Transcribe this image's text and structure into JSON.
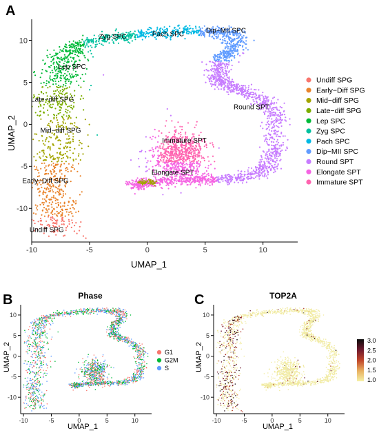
{
  "chart_data": [
    {
      "panel_label": "A",
      "type": "scatter",
      "title": "",
      "xlabel": "UMAP_1",
      "ylabel": "UMAP_2",
      "xlim": [
        -10,
        13
      ],
      "ylim": [
        -14,
        12.5
      ],
      "xticks": [
        -10,
        -5,
        0,
        5,
        10
      ],
      "yticks": [
        -10,
        -5,
        0,
        5,
        10
      ],
      "legend_position": "right",
      "series": [
        {
          "name": "Undiff SPG",
          "color": "#F8766D",
          "cx": -7.6,
          "cy": -12.5,
          "label": "Undiff SPG",
          "label_x": -8.7,
          "label_y": -12.8
        },
        {
          "name": "Early−Diff SPG",
          "color": "#E9842C",
          "cx": -8.2,
          "cy": -7.0,
          "label": "Early−Diff SPG",
          "label_x": -8.8,
          "label_y": -7.0
        },
        {
          "name": "Mid−diff SPG",
          "color": "#A3A500",
          "cx": -7.5,
          "cy": -1.5,
          "label": "Mid−diff SPG",
          "label_x": -7.5,
          "label_y": -1.0
        },
        {
          "name": "Late−diff SPG",
          "color": "#7CAE00",
          "cx": -7.5,
          "cy": 2.8,
          "label": "Late−diff SPG",
          "label_x": -8.2,
          "label_y": 2.7
        },
        {
          "name": "Lep SPC",
          "color": "#00BA38",
          "cx": -7.0,
          "cy": 7.0,
          "label": "Lep SPC",
          "label_x": -6.5,
          "label_y": 6.6
        },
        {
          "name": "Zyg SPC",
          "color": "#00C19F",
          "cx": -4.0,
          "cy": 10.2,
          "label": "Zyg SPC",
          "label_x": -3.0,
          "label_y": 10.2
        },
        {
          "name": "Pach SPC",
          "color": "#00B9E3",
          "cx": 1.5,
          "cy": 10.8,
          "label": "Pach SPC",
          "label_x": 1.8,
          "label_y": 10.5
        },
        {
          "name": "Dip−MII SPC",
          "color": "#619CFF",
          "cx": 6.5,
          "cy": 10.5,
          "label": "Dip−MII SPC",
          "label_x": 6.8,
          "label_y": 10.9
        },
        {
          "name": "Round SPT",
          "color": "#C77CFF",
          "cx": 8.0,
          "cy": 2.0,
          "label": "Round SPT",
          "label_x": 9.0,
          "label_y": 1.8
        },
        {
          "name": "Elongate SPT",
          "color": "#F564E3",
          "cx": 2.5,
          "cy": -5.5,
          "label": "Elongate SPT",
          "label_x": 2.2,
          "label_y": -6.0
        },
        {
          "name": "Immature SPT",
          "color": "#FF64B0",
          "cx": 3.0,
          "cy": -2.0,
          "label": "Immature SPT",
          "label_x": 3.2,
          "label_y": -2.2
        }
      ],
      "trajectory": [
        [
          -7.5,
          -12.8
        ],
        [
          -8.2,
          -10
        ],
        [
          -8.4,
          -7
        ],
        [
          -7.8,
          -4
        ],
        [
          -7.5,
          -1
        ],
        [
          -7.8,
          2
        ],
        [
          -7.6,
          5
        ],
        [
          -7.2,
          7.8
        ],
        [
          -6,
          9.5
        ],
        [
          -3,
          10.3
        ],
        [
          0,
          10.8
        ],
        [
          3,
          11.2
        ],
        [
          5.5,
          11
        ],
        [
          7.5,
          10.8
        ],
        [
          7.6,
          9
        ],
        [
          6.5,
          8
        ],
        [
          6,
          6
        ],
        [
          6.3,
          5
        ],
        [
          8,
          4
        ],
        [
          10,
          3
        ],
        [
          11,
          1
        ],
        [
          11,
          -3
        ],
        [
          10.5,
          -5
        ],
        [
          9,
          -6.2
        ],
        [
          6,
          -6.6
        ],
        [
          4,
          -6.5
        ],
        [
          1,
          -6.8
        ],
        [
          -1,
          -7.2
        ],
        [
          -0.3,
          -7
        ]
      ]
    },
    {
      "panel_label": "B",
      "type": "scatter",
      "title": "Phase",
      "xlabel": "UMAP_1",
      "ylabel": "UMAP_2",
      "xlim": [
        -10.5,
        13
      ],
      "ylim": [
        -14,
        12.5
      ],
      "xticks": [
        -10,
        -5,
        0,
        5,
        10
      ],
      "yticks": [
        -10,
        -5,
        0,
        5,
        10
      ],
      "legend_position": "right",
      "series": [
        {
          "name": "G1",
          "color": "#F8766D"
        },
        {
          "name": "G2M",
          "color": "#00BA38"
        },
        {
          "name": "S",
          "color": "#619CFF"
        }
      ]
    },
    {
      "panel_label": "C",
      "type": "scatter",
      "title": "TOP2A",
      "xlabel": "UMAP_1",
      "ylabel": "UMAP_2",
      "xlim": [
        -10.5,
        13
      ],
      "ylim": [
        -14,
        12.5
      ],
      "xticks": [
        -10,
        -5,
        0,
        5,
        10
      ],
      "yticks": [
        -10,
        -5,
        0,
        5,
        10
      ],
      "legend_position": "right",
      "colorbar": {
        "min": 1.0,
        "max": 3.0,
        "ticks": [
          "3.0",
          "2.5",
          "2.0",
          "1.5",
          "1.0"
        ],
        "colors": [
          "#F5F0A6",
          "#E8B060",
          "#C0452A",
          "#6E1A2E",
          "#0B0B0B"
        ]
      }
    }
  ]
}
